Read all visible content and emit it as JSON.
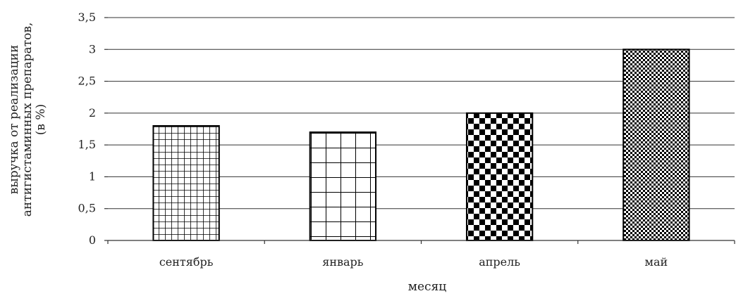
{
  "chart_data": {
    "type": "bar",
    "categories": [
      "сентябрь",
      "январь",
      "апрель",
      "май"
    ],
    "values": [
      1.8,
      1.7,
      2.0,
      3.0
    ],
    "xlabel": "месяц",
    "ylabel_lines": [
      "выручка от реализации",
      "антигистаминных препаратов,",
      "(в %)"
    ],
    "ylim": [
      0,
      3.5
    ],
    "yticks": [
      "0",
      "0,5",
      "1",
      "1,5",
      "2",
      "2,5",
      "3",
      "3,5"
    ],
    "grid": true,
    "bar_patterns": [
      "small-grid",
      "large-grid",
      "checker",
      "fine-checker"
    ]
  }
}
